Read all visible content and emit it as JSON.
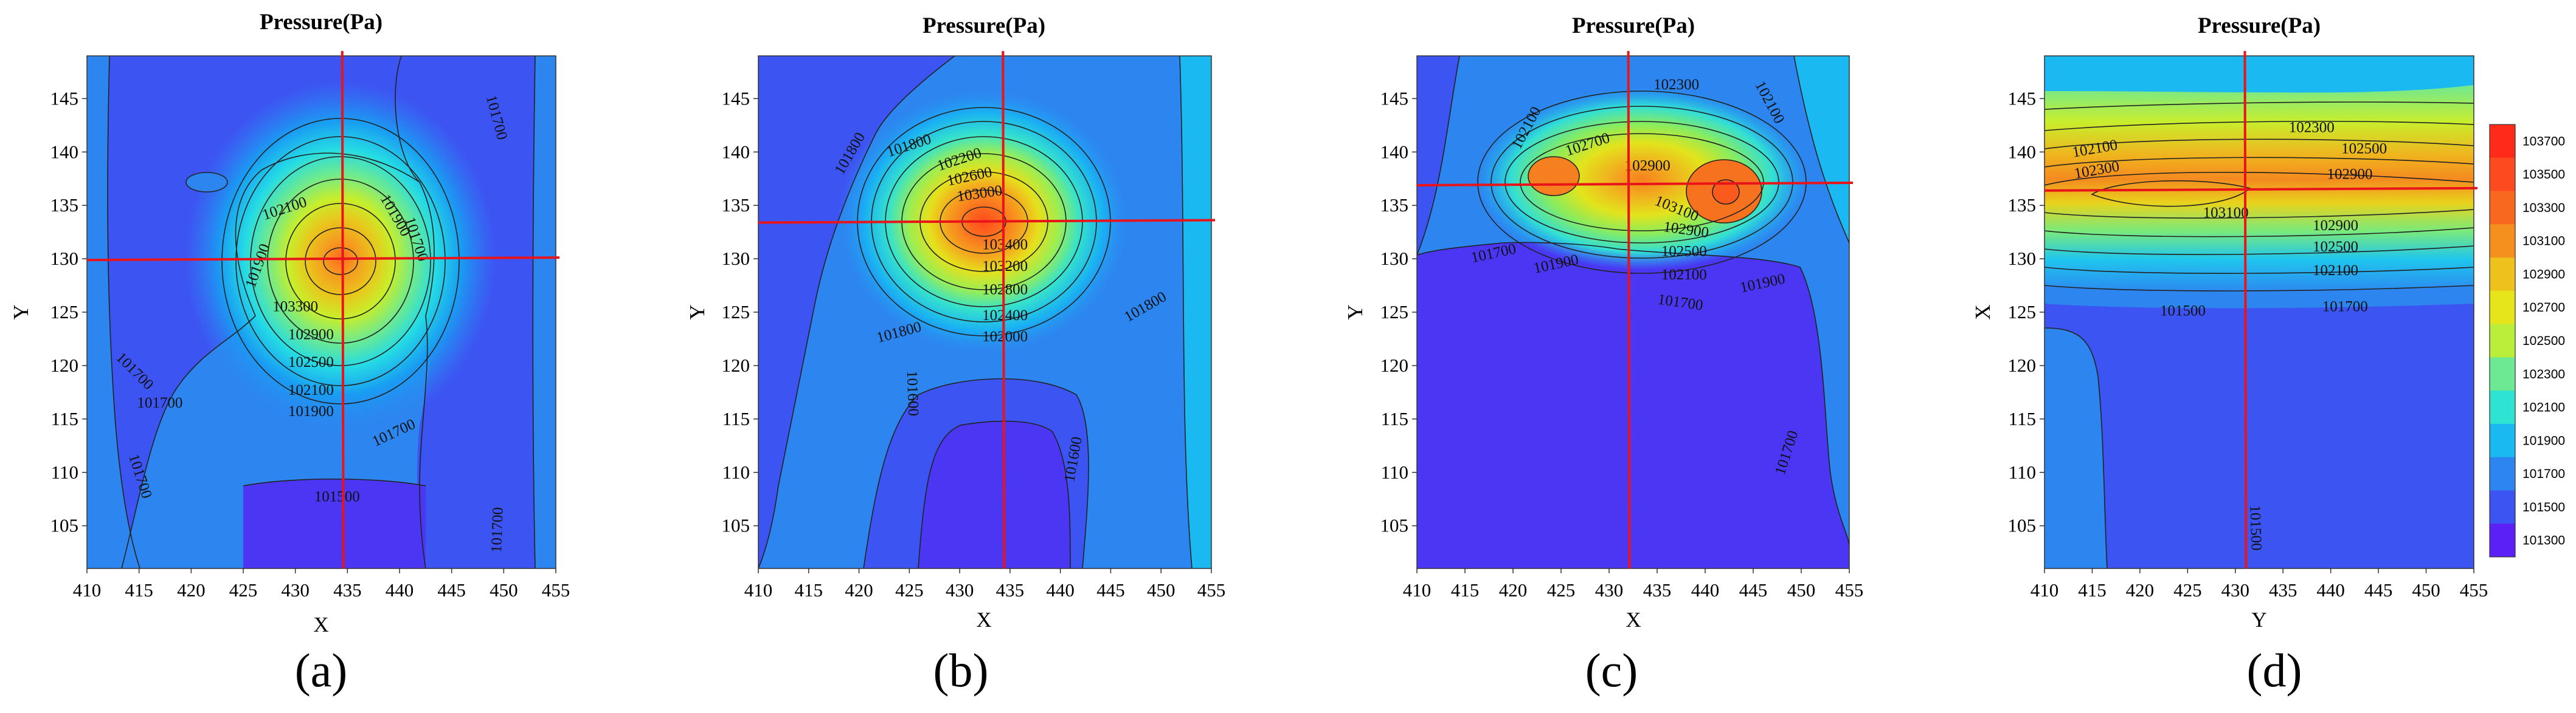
{
  "chart_data": [
    {
      "type": "contour",
      "panel": "(a)",
      "title": "Pressure(Pa)",
      "xlabel": "X",
      "ylabel": "Y",
      "xlim": [
        410,
        455
      ],
      "ylim": [
        101,
        149
      ],
      "xticks": [
        "410",
        "415",
        "420",
        "425",
        "430",
        "435",
        "440",
        "445",
        "450",
        "455"
      ],
      "yticks": [
        "105",
        "110",
        "115",
        "120",
        "125",
        "130",
        "135",
        "140",
        "145"
      ],
      "background": 101700,
      "peak": {
        "x": 434,
        "y": 130,
        "value": 103500
      },
      "crosshair": {
        "x": 434.5,
        "y": 130
      },
      "contour_labels": [
        {
          "text": "102100",
          "x": 429,
          "y": 134.6,
          "rot": -18
        },
        {
          "text": "101900",
          "x": 426.5,
          "y": 129.3,
          "rot": -70
        },
        {
          "text": "103300",
          "x": 430,
          "y": 125.4,
          "rot": 0
        },
        {
          "text": "102900",
          "x": 431.5,
          "y": 122.8,
          "rot": 0
        },
        {
          "text": "102500",
          "x": 431.5,
          "y": 120.2,
          "rot": 0
        },
        {
          "text": "102100",
          "x": 431.5,
          "y": 117.6,
          "rot": 0
        },
        {
          "text": "101900",
          "x": 431.5,
          "y": 115.6,
          "rot": 0
        },
        {
          "text": "101700",
          "x": 414.5,
          "y": 119.4,
          "rot": 45
        },
        {
          "text": "101700",
          "x": 417,
          "y": 116.4,
          "rot": 0
        },
        {
          "text": "101700",
          "x": 439.5,
          "y": 113.6,
          "rot": -25
        },
        {
          "text": "101700",
          "x": 415,
          "y": 109.6,
          "rot": 72
        },
        {
          "text": "101500",
          "x": 434,
          "y": 107.6,
          "rot": 0
        },
        {
          "text": "101700",
          "x": 441.5,
          "y": 131.8,
          "rot": 72
        },
        {
          "text": "101900",
          "x": 439.5,
          "y": 134,
          "rot": 60
        },
        {
          "text": "101700",
          "x": 449.2,
          "y": 143.2,
          "rot": 75
        },
        {
          "text": "101700",
          "x": 449.5,
          "y": 104.6,
          "rot": -88
        }
      ]
    },
    {
      "type": "contour",
      "panel": "(b)",
      "title": "Pressure(Pa)",
      "xlabel": "X",
      "ylabel": "Y",
      "xlim": [
        410,
        455
      ],
      "ylim": [
        101,
        149
      ],
      "xticks": [
        "410",
        "415",
        "420",
        "425",
        "430",
        "435",
        "440",
        "445",
        "450",
        "455"
      ],
      "yticks": [
        "105",
        "110",
        "115",
        "120",
        "125",
        "130",
        "135",
        "140",
        "145"
      ],
      "background": 101800,
      "peak": {
        "x": 434,
        "y": 134,
        "value": 103500
      },
      "crosshair": {
        "x": 434.3,
        "y": 133.5
      },
      "contour_labels": [
        {
          "text": "101800",
          "x": 419.2,
          "y": 139.8,
          "rot": -60
        },
        {
          "text": "101800",
          "x": 425,
          "y": 140.5,
          "rot": -18
        },
        {
          "text": "102200",
          "x": 430,
          "y": 139.2,
          "rot": -18
        },
        {
          "text": "102600",
          "x": 431,
          "y": 137.6,
          "rot": -12
        },
        {
          "text": "103000",
          "x": 432,
          "y": 136,
          "rot": -8
        },
        {
          "text": "103400",
          "x": 434.5,
          "y": 131.2,
          "rot": 0
        },
        {
          "text": "103200",
          "x": 434.5,
          "y": 129.2,
          "rot": 0
        },
        {
          "text": "102800",
          "x": 434.5,
          "y": 127,
          "rot": 0
        },
        {
          "text": "102400",
          "x": 434.5,
          "y": 124.6,
          "rot": 0
        },
        {
          "text": "102000",
          "x": 434.5,
          "y": 122.6,
          "rot": 0
        },
        {
          "text": "101800",
          "x": 424,
          "y": 123,
          "rot": -15
        },
        {
          "text": "101800",
          "x": 448.5,
          "y": 125.4,
          "rot": -30
        },
        {
          "text": "101600",
          "x": 425.2,
          "y": 117.4,
          "rot": 88
        },
        {
          "text": "101600",
          "x": 441.4,
          "y": 111.2,
          "rot": -80
        }
      ]
    },
    {
      "type": "contour",
      "panel": "(c)",
      "title": "Pressure(Pa)",
      "xlabel": "X",
      "ylabel": "Y",
      "xlim": [
        410,
        455
      ],
      "ylim": [
        101,
        149
      ],
      "xticks": [
        "410",
        "415",
        "420",
        "425",
        "430",
        "435",
        "440",
        "445",
        "450",
        "455"
      ],
      "yticks": [
        "105",
        "110",
        "115",
        "120",
        "125",
        "130",
        "135",
        "140",
        "145"
      ],
      "background": 101700,
      "peak": {
        "x": 442,
        "y": 136.5,
        "value": 103300
      },
      "crosshair": {
        "x": 432,
        "y": 137
      },
      "contour_labels": [
        {
          "text": "102100",
          "x": 421.5,
          "y": 142.2,
          "rot": -62
        },
        {
          "text": "102300",
          "x": 437,
          "y": 146.2,
          "rot": 0
        },
        {
          "text": "102100",
          "x": 446.6,
          "y": 144.6,
          "rot": 62
        },
        {
          "text": "102700",
          "x": 427.8,
          "y": 140.6,
          "rot": -18
        },
        {
          "text": "102900",
          "x": 434,
          "y": 138.6,
          "rot": 0
        },
        {
          "text": "103100",
          "x": 437,
          "y": 134.6,
          "rot": 22
        },
        {
          "text": "102900",
          "x": 438,
          "y": 132.6,
          "rot": 8
        },
        {
          "text": "102500",
          "x": 437.8,
          "y": 130.6,
          "rot": 0
        },
        {
          "text": "102100",
          "x": 437.8,
          "y": 128.4,
          "rot": 0
        },
        {
          "text": "101700",
          "x": 418,
          "y": 130.4,
          "rot": -12
        },
        {
          "text": "101900",
          "x": 424.5,
          "y": 129.4,
          "rot": -12
        },
        {
          "text": "101900",
          "x": 446,
          "y": 127.6,
          "rot": -12
        },
        {
          "text": "101700",
          "x": 437.4,
          "y": 125.8,
          "rot": 8
        },
        {
          "text": "101700",
          "x": 448.6,
          "y": 111.8,
          "rot": -72
        }
      ]
    },
    {
      "type": "contour",
      "panel": "(d)",
      "title": "Pressure(Pa)",
      "xlabel": "Y",
      "ylabel": "X",
      "xlim": [
        410,
        455
      ],
      "ylim": [
        101,
        149
      ],
      "xticks": [
        "410",
        "415",
        "420",
        "425",
        "430",
        "435",
        "440",
        "445",
        "450",
        "455"
      ],
      "yticks": [
        "105",
        "110",
        "115",
        "120",
        "125",
        "130",
        "135",
        "140",
        "145"
      ],
      "background": 101500,
      "peak": {
        "x": 428,
        "y": 136.5,
        "value": 103300
      },
      "crosshair": {
        "x": 431,
        "y": 136.5
      },
      "contour_labels": [
        {
          "text": "102100",
          "x": 415.3,
          "y": 140.2,
          "rot": -10
        },
        {
          "text": "102300",
          "x": 415.5,
          "y": 138.2,
          "rot": -10
        },
        {
          "text": "102300",
          "x": 438,
          "y": 142.2,
          "rot": 0
        },
        {
          "text": "102500",
          "x": 443.5,
          "y": 140.2,
          "rot": 0
        },
        {
          "text": "102900",
          "x": 442,
          "y": 137.8,
          "rot": 0
        },
        {
          "text": "103100",
          "x": 429,
          "y": 134.2,
          "rot": 0
        },
        {
          "text": "102900",
          "x": 440.5,
          "y": 133,
          "rot": 0
        },
        {
          "text": "102500",
          "x": 440.5,
          "y": 131,
          "rot": 0
        },
        {
          "text": "102100",
          "x": 440.5,
          "y": 128.8,
          "rot": 0
        },
        {
          "text": "101700",
          "x": 441.5,
          "y": 125.4,
          "rot": 0
        },
        {
          "text": "101500",
          "x": 424.5,
          "y": 125,
          "rot": 0
        },
        {
          "text": "101500",
          "x": 432,
          "y": 104.8,
          "rot": 88
        }
      ]
    }
  ],
  "colorbar": {
    "levels": [
      "103700",
      "103500",
      "103300",
      "103100",
      "102900",
      "102700",
      "102500",
      "102300",
      "102100",
      "101900",
      "101700",
      "101500",
      "101300"
    ],
    "colors": [
      "#ff2a1a",
      "#fd4a1e",
      "#f9681f",
      "#f5901f",
      "#eec11c",
      "#e6e51c",
      "#b9ee3a",
      "#6ee993",
      "#2fe3d3",
      "#1ab9f2",
      "#2d86f0",
      "#3c55f2",
      "#5a20f5"
    ]
  }
}
